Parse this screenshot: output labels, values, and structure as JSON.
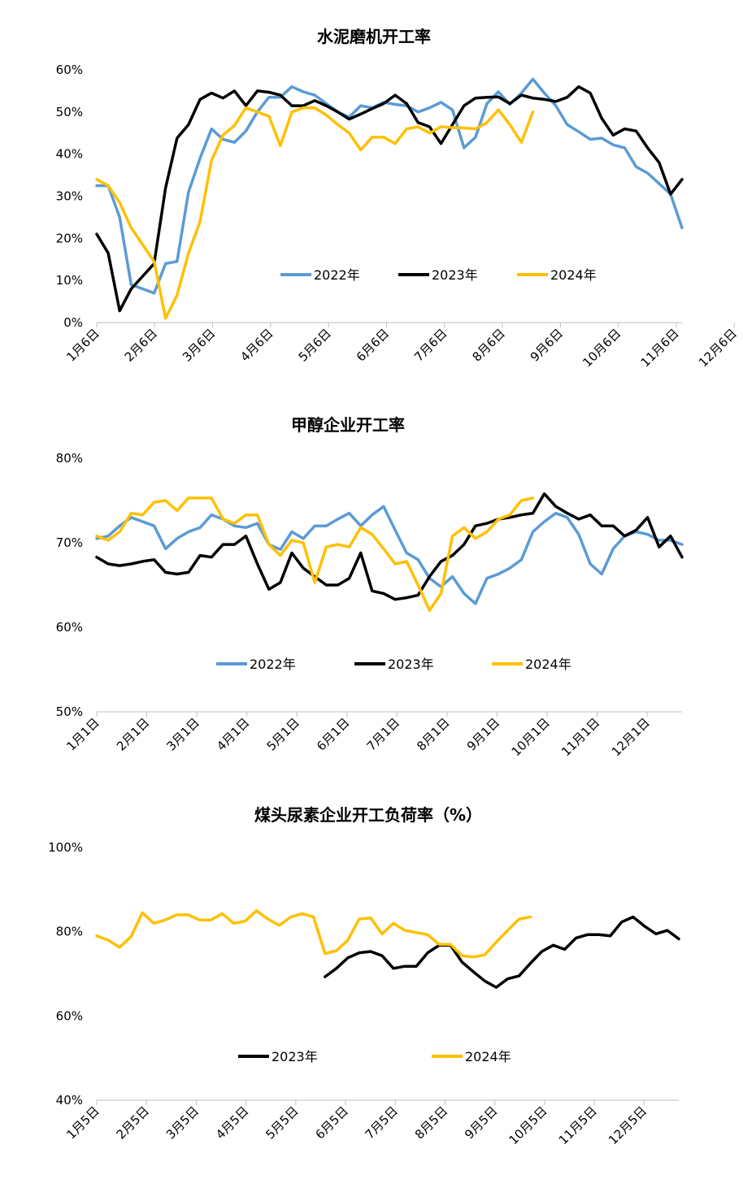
{
  "chart_data": [
    {
      "type": "line",
      "title": "水泥磨机开工率",
      "xlabel": "",
      "ylabel": "",
      "x_ticks": [
        "1月6日",
        "2月6日",
        "3月6日",
        "4月6日",
        "5月6日",
        "6月6日",
        "7月6日",
        "8月6日",
        "9月6日",
        "10月6日",
        "11月6日",
        "12月6日"
      ],
      "y_ticks": [
        "0%",
        "10%",
        "20%",
        "30%",
        "40%",
        "50%",
        "60%"
      ],
      "ylim": [
        0,
        60
      ],
      "x_range_weeks": [
        1,
        52
      ],
      "grid": false,
      "legend_position": "inside-bottom-right",
      "series": [
        {
          "name": "2022年",
          "color": "#5b9bd5",
          "x": [
            1,
            2,
            3,
            4,
            5,
            6,
            7,
            8,
            9,
            10,
            11,
            12,
            13,
            14,
            15,
            16,
            17,
            18,
            19,
            20,
            21,
            22,
            23,
            24,
            25,
            26,
            27,
            28,
            29,
            30,
            31,
            32,
            33,
            34,
            35,
            36,
            37,
            38,
            39,
            40,
            41,
            42,
            43,
            44,
            45,
            46,
            47,
            48,
            49,
            50,
            51,
            52
          ],
          "values": [
            32.5,
            32.5,
            25.0,
            9.0,
            8.0,
            7.0,
            14.0,
            14.5,
            31.0,
            39.0,
            46.0,
            43.5,
            42.8,
            45.5,
            50.0,
            53.5,
            53.5,
            56.0,
            54.8,
            54.0,
            52.0,
            50.0,
            48.8,
            51.5,
            51.0,
            52.3,
            51.8,
            51.5,
            50.0,
            51.0,
            52.3,
            50.5,
            41.5,
            44.0,
            52.0,
            54.8,
            51.8,
            54.5,
            57.8,
            54.5,
            51.5,
            47.0,
            45.3,
            43.5,
            43.8,
            42.2,
            41.5,
            37.0,
            35.5,
            33.0,
            30.5,
            22.5
          ]
        },
        {
          "name": "2023年",
          "color": "#000000",
          "x": [
            1,
            2,
            3,
            4,
            5,
            6,
            7,
            8,
            9,
            10,
            11,
            12,
            13,
            14,
            15,
            16,
            17,
            18,
            19,
            20,
            21,
            22,
            23,
            24,
            25,
            26,
            27,
            28,
            29,
            30,
            31,
            32,
            33,
            34,
            35,
            36,
            37,
            38,
            39,
            40,
            41,
            42,
            43,
            44,
            45,
            46,
            47,
            48,
            49,
            50,
            51,
            52
          ],
          "values": [
            21.0,
            16.5,
            2.8,
            8.0,
            11.0,
            14.0,
            32.0,
            43.8,
            47.0,
            53.0,
            54.5,
            53.3,
            55.0,
            51.5,
            55.0,
            54.7,
            54.0,
            51.5,
            51.5,
            52.7,
            51.5,
            50.0,
            48.3,
            49.5,
            50.8,
            52.0,
            54.0,
            52.0,
            47.5,
            46.5,
            42.5,
            47.0,
            51.5,
            53.3,
            53.5,
            53.6,
            52.0,
            54.0,
            53.3,
            53.0,
            52.5,
            53.5,
            56.0,
            54.5,
            48.5,
            44.5,
            46.0,
            45.5,
            41.5,
            38.0,
            30.5,
            34.0
          ]
        },
        {
          "name": "2024年",
          "color": "#ffc000",
          "x": [
            1,
            2,
            3,
            4,
            5,
            6,
            7,
            8,
            9,
            10,
            11,
            12,
            13,
            14,
            15,
            16,
            17,
            18,
            19,
            20,
            21,
            22,
            23,
            24,
            25,
            26,
            27,
            28,
            29,
            30,
            31,
            32,
            33,
            34,
            35,
            36,
            37,
            38,
            39
          ],
          "values": [
            34.0,
            32.5,
            28.5,
            22.5,
            18.5,
            14.5,
            1.0,
            6.5,
            16.5,
            24.0,
            38.5,
            44.5,
            46.8,
            51.0,
            50.0,
            49.0,
            42.0,
            50.0,
            51.0,
            51.0,
            49.3,
            47.0,
            45.0,
            41.0,
            44.0,
            44.0,
            42.5,
            46.0,
            46.5,
            45.0,
            46.5,
            46.3,
            46.2,
            46.0,
            47.5,
            50.5,
            47.0,
            42.8,
            50.0
          ]
        }
      ]
    },
    {
      "type": "line",
      "title": "甲醇企业开工率",
      "xlabel": "",
      "ylabel": "",
      "x_ticks": [
        "1月1日",
        "2月1日",
        "3月1日",
        "4月1日",
        "5月1日",
        "6月1日",
        "7月1日",
        "8月1日",
        "9月1日",
        "10月1日",
        "11月1日",
        "12月1日"
      ],
      "y_ticks": [
        "50%",
        "60%",
        "70%",
        "80%"
      ],
      "ylim": [
        50,
        80
      ],
      "x_range_weeks": [
        1,
        52
      ],
      "grid": false,
      "legend_position": "inside-bottom-center",
      "series": [
        {
          "name": "2022年",
          "color": "#5b9bd5",
          "x": [
            1,
            2,
            3,
            4,
            5,
            6,
            7,
            8,
            9,
            10,
            11,
            12,
            13,
            14,
            15,
            16,
            17,
            18,
            19,
            20,
            21,
            22,
            23,
            24,
            25,
            26,
            27,
            28,
            29,
            30,
            31,
            32,
            33,
            34,
            35,
            36,
            37,
            38,
            39,
            40,
            41,
            42,
            43,
            44,
            45,
            46,
            47,
            48,
            49,
            50,
            51,
            52
          ],
          "values": [
            70.5,
            70.8,
            72.0,
            73.0,
            72.5,
            72.0,
            69.3,
            70.5,
            71.3,
            71.8,
            73.3,
            72.8,
            72.0,
            71.8,
            72.3,
            69.8,
            69.2,
            71.3,
            70.5,
            72.0,
            72.0,
            72.8,
            73.5,
            72.0,
            73.3,
            74.3,
            71.5,
            68.8,
            68.0,
            65.8,
            64.8,
            66.0,
            64.0,
            62.8,
            65.8,
            66.3,
            67.0,
            68.0,
            71.3,
            72.5,
            73.5,
            73.0,
            71.0,
            67.5,
            66.3,
            69.3,
            70.8,
            71.3,
            71.0,
            70.3,
            70.3,
            69.8
          ]
        },
        {
          "name": "2023年",
          "color": "#000000",
          "x": [
            1,
            2,
            3,
            4,
            5,
            6,
            7,
            8,
            9,
            10,
            11,
            12,
            13,
            14,
            15,
            16,
            17,
            18,
            19,
            20,
            21,
            22,
            23,
            24,
            25,
            26,
            27,
            28,
            29,
            30,
            31,
            32,
            33,
            34,
            35,
            36,
            37,
            38,
            39,
            40,
            41,
            42,
            43,
            44,
            45,
            46,
            47,
            48,
            49,
            50,
            51,
            52
          ],
          "values": [
            68.3,
            67.5,
            67.3,
            67.5,
            67.8,
            68.0,
            66.5,
            66.3,
            66.5,
            68.5,
            68.3,
            69.8,
            69.8,
            70.8,
            67.5,
            64.5,
            65.3,
            68.8,
            67.0,
            66.0,
            65.0,
            65.0,
            65.8,
            68.8,
            64.3,
            64.0,
            63.3,
            63.5,
            63.8,
            66.0,
            67.8,
            68.5,
            69.8,
            72.0,
            72.3,
            72.8,
            73.0,
            73.3,
            73.5,
            75.8,
            74.3,
            73.5,
            72.8,
            73.3,
            72.0,
            72.0,
            70.8,
            71.5,
            73.0,
            69.5,
            70.8,
            68.3
          ]
        },
        {
          "name": "2024年",
          "color": "#ffc000",
          "x": [
            1,
            2,
            3,
            4,
            5,
            6,
            7,
            8,
            9,
            10,
            11,
            12,
            13,
            14,
            15,
            16,
            17,
            18,
            19,
            20,
            21,
            22,
            23,
            24,
            25,
            26,
            27,
            28,
            29,
            30,
            31,
            32,
            33,
            34,
            35,
            36,
            37,
            38,
            39,
            40
          ],
          "values": [
            70.8,
            70.3,
            71.3,
            73.5,
            73.3,
            74.8,
            75.0,
            73.8,
            75.3,
            75.3,
            75.3,
            72.8,
            72.3,
            73.3,
            73.3,
            69.8,
            68.5,
            70.3,
            70.0,
            65.3,
            69.5,
            69.8,
            69.5,
            71.8,
            71.0,
            69.3,
            67.5,
            67.8,
            65.0,
            62.0,
            64.0,
            70.8,
            71.8,
            70.5,
            71.3,
            72.8,
            73.3,
            75.0,
            75.3,
            null
          ]
        }
      ]
    },
    {
      "type": "line",
      "title": "煤头尿素企业开工负荷率（%）",
      "xlabel": "",
      "ylabel": "",
      "x_ticks": [
        "1月5日",
        "2月5日",
        "3月5日",
        "4月5日",
        "5月5日",
        "6月5日",
        "7月5日",
        "8月5日",
        "9月5日",
        "10月5日",
        "11月5日",
        "12月5日"
      ],
      "y_ticks": [
        "40%",
        "60%",
        "80%",
        "100%"
      ],
      "ylim": [
        40,
        100
      ],
      "x_range_weeks": [
        1,
        52
      ],
      "grid": false,
      "legend_position": "inside-bottom-center",
      "series": [
        {
          "name": "2023年",
          "color": "#000000",
          "x": [
            21,
            22,
            23,
            24,
            25,
            26,
            27,
            28,
            29,
            30,
            31,
            32,
            33,
            34,
            35,
            36,
            37,
            38,
            39,
            40,
            41,
            42,
            43,
            44,
            45,
            46,
            47,
            48,
            49,
            50,
            51,
            52
          ],
          "values": [
            69.3,
            71.3,
            73.8,
            75.0,
            75.3,
            74.3,
            71.3,
            71.8,
            71.8,
            75.0,
            76.8,
            76.8,
            72.8,
            70.5,
            68.3,
            66.8,
            68.8,
            69.5,
            72.5,
            75.3,
            76.8,
            75.8,
            78.5,
            79.3,
            79.3,
            79.0,
            82.3,
            83.5,
            81.3,
            79.5,
            80.3,
            78.3
          ]
        },
        {
          "name": "2024年",
          "color": "#ffc000",
          "x": [
            1,
            2,
            3,
            4,
            5,
            6,
            7,
            8,
            9,
            10,
            11,
            12,
            13,
            14,
            15,
            16,
            17,
            18,
            19,
            20,
            21,
            22,
            23,
            24,
            25,
            26,
            27,
            28,
            29,
            30,
            31,
            32,
            33,
            34,
            35,
            36,
            37,
            38,
            39
          ],
          "values": [
            79.0,
            78.0,
            76.3,
            78.8,
            84.5,
            82.0,
            82.8,
            84.0,
            84.0,
            82.8,
            82.8,
            84.3,
            82.0,
            82.5,
            85.0,
            83.0,
            81.5,
            83.5,
            84.3,
            83.5,
            74.8,
            75.5,
            78.0,
            83.0,
            83.3,
            79.5,
            82.0,
            80.3,
            79.8,
            79.3,
            77.0,
            77.0,
            74.3,
            74.0,
            74.5,
            77.5,
            80.3,
            83.0,
            83.5
          ]
        }
      ]
    }
  ]
}
